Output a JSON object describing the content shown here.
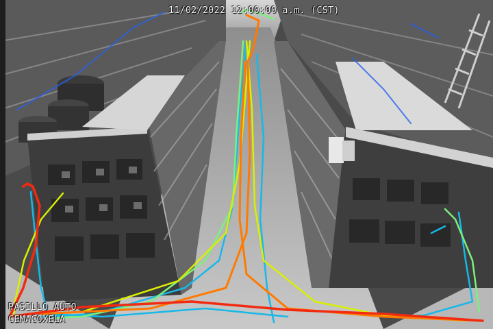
{
  "overlay": {
    "timestamp": "11/02/2022 12:00:00 a.m. (CST)",
    "camera_name_line1": "PASILLO AUTO",
    "camera_name_line2": "CEMACOXELA"
  },
  "colors": {
    "track_red": "#f22a10",
    "track_orange": "#ff7a00",
    "track_yellow": "#d8f000",
    "track_green": "#7cf07c",
    "track_cyan": "#18b8e8",
    "track_blue": "#2860f0"
  }
}
